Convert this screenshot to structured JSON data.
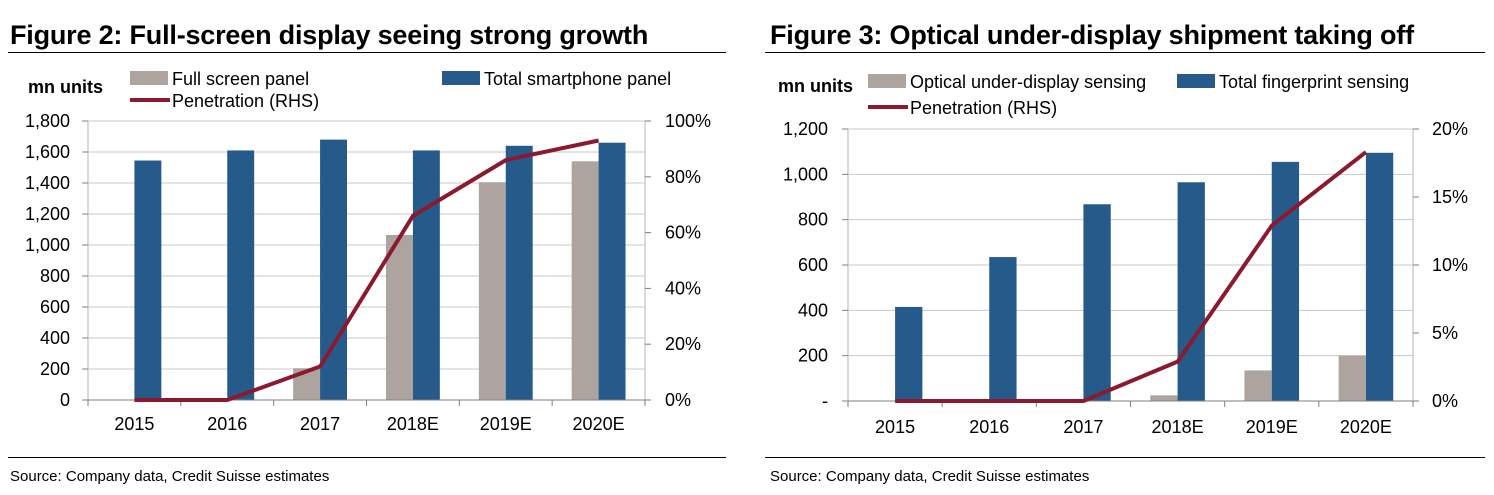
{
  "figures": [
    {
      "title": "Figure 2: Full-screen display seeing strong growth",
      "source": "Source: Company data, Credit Suisse estimates"
    },
    {
      "title": "Figure 3: Optical under-display shipment taking off",
      "source": "Source: Company data, Credit Suisse estimates"
    }
  ],
  "chart_data": [
    {
      "type": "bar",
      "title": "Figure 2: Full-screen display seeing strong growth",
      "ylabel": "mn units",
      "categories": [
        "2015",
        "2016",
        "2017",
        "2018E",
        "2019E",
        "2020E"
      ],
      "ylim": [
        0,
        1800
      ],
      "yticks": [
        0,
        200,
        400,
        600,
        800,
        1000,
        1200,
        1400,
        1600,
        1800
      ],
      "ytick_labels": [
        "0",
        "200",
        "400",
        "600",
        "800",
        "1,000",
        "1,200",
        "1,400",
        "1,600",
        "1,800"
      ],
      "y2lim": [
        0,
        100
      ],
      "y2ticks": [
        0,
        20,
        40,
        60,
        80,
        100
      ],
      "y2tick_labels": [
        "0%",
        "20%",
        "40%",
        "60%",
        "80%",
        "100%"
      ],
      "series": [
        {
          "name": "Full screen panel",
          "kind": "bar",
          "color": "#ada49f",
          "values": [
            0,
            0,
            205,
            1065,
            1405,
            1540
          ]
        },
        {
          "name": "Total smartphone panel",
          "kind": "bar",
          "color": "#255a8a",
          "values": [
            1545,
            1610,
            1680,
            1610,
            1640,
            1660
          ]
        },
        {
          "name": "Penetration (RHS)",
          "kind": "line",
          "axis": "right",
          "color": "#8b1a2f",
          "values": [
            0,
            0,
            12,
            66,
            86,
            93
          ]
        }
      ],
      "legend": "top"
    },
    {
      "type": "bar",
      "title": "Figure 3: Optical under-display shipment taking off",
      "ylabel": "mn units",
      "categories": [
        "2015",
        "2016",
        "2017",
        "2018E",
        "2019E",
        "2020E"
      ],
      "ylim": [
        0,
        1200
      ],
      "yticks": [
        0,
        200,
        400,
        600,
        800,
        1000,
        1200
      ],
      "ytick_labels": [
        "-",
        "200",
        "400",
        "600",
        "800",
        "1,000",
        "1,200"
      ],
      "y2lim": [
        0,
        20
      ],
      "y2ticks": [
        0,
        5,
        10,
        15,
        20
      ],
      "y2tick_labels": [
        "0%",
        "5%",
        "10%",
        "15%",
        "20%"
      ],
      "series": [
        {
          "name": "Optical under-display sensing",
          "kind": "bar",
          "color": "#ada49f",
          "values": [
            0,
            0,
            0,
            25,
            135,
            200
          ]
        },
        {
          "name": "Total fingerprint sensing",
          "kind": "bar",
          "color": "#255a8a",
          "values": [
            415,
            635,
            868,
            965,
            1055,
            1095
          ]
        },
        {
          "name": "Penetration (RHS)",
          "kind": "line",
          "axis": "right",
          "color": "#8b1a2f",
          "values": [
            0,
            0,
            0,
            2.9,
            12.9,
            18.3
          ]
        }
      ],
      "legend": "top"
    }
  ]
}
